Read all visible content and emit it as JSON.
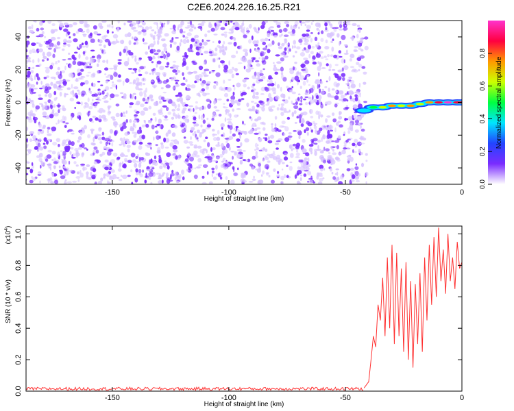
{
  "title": "C2E6.2024.226.16.25.R21",
  "colorbar": {
    "label": "Normalized spectral amplitude",
    "ticks": [
      "0.0",
      "0.2",
      "0.4",
      "0.6",
      "0.8"
    ],
    "tick_values": [
      0.0,
      0.2,
      0.4,
      0.6,
      0.8
    ],
    "range": [
      0,
      1
    ],
    "colors": [
      "#ffffff",
      "#7a2cff",
      "#2244ff",
      "#00e5ff",
      "#00ff40",
      "#ccff00",
      "#ff9900",
      "#ff0040",
      "#ff33cc"
    ]
  },
  "chart_data": [
    {
      "type": "heatmap",
      "xlabel": "Height of straight line (km)",
      "ylabel": "Frequency (Hz)",
      "xlim": [
        -187,
        0
      ],
      "ylim": [
        -50,
        50
      ],
      "x_ticks": [
        -150,
        -100,
        -50,
        0
      ],
      "y_ticks": [
        -40,
        -20,
        0,
        20,
        40
      ],
      "noise_region_x": [
        -187,
        -42
      ],
      "signal_track": {
        "x": [
          -42,
          -38,
          -34,
          -30,
          -26,
          -22,
          -18,
          -14,
          -10,
          -6,
          -2,
          0
        ],
        "y": [
          -5,
          -3,
          -3,
          -2,
          -2,
          -2,
          -1,
          0,
          0,
          0,
          0,
          0
        ],
        "amplitude": [
          0.4,
          0.5,
          0.6,
          0.7,
          0.6,
          0.7,
          0.6,
          0.8,
          0.9,
          0.95,
          0.9,
          0.85
        ]
      },
      "colors": {
        "noise": "#7a2cff",
        "noise_light": "#d8c4ff"
      }
    },
    {
      "type": "line",
      "xlabel": "Height of straight line (km)",
      "ylabel": "SNR (10 * v/v)",
      "y_multiplier": "(x10",
      "y_multiplier_exp": "4",
      "y_multiplier_close": ")",
      "xlim": [
        -187,
        0
      ],
      "ylim": [
        0,
        1.05
      ],
      "x_ticks": [
        -150,
        -100,
        -50,
        0
      ],
      "y_ticks": [
        0.0,
        0.2,
        0.4,
        0.6,
        0.8,
        1.0
      ],
      "y_tick_labels": [
        "0.0",
        "0.2",
        "0.4",
        "0.6",
        "0.8",
        "1.0"
      ],
      "series": [
        {
          "color": "#ff3030",
          "x": [
            -187,
            -150,
            -100,
            -50,
            -42,
            -40,
            -39,
            -38,
            -37,
            -36,
            -35,
            -34,
            -33,
            -32,
            -31,
            -30,
            -29,
            -28,
            -27,
            -26,
            -25,
            -24,
            -23,
            -22,
            -21,
            -20,
            -19,
            -18,
            -17,
            -16,
            -15,
            -14,
            -13,
            -12,
            -11,
            -10,
            -9,
            -8,
            -7,
            -6,
            -5,
            -4,
            -3,
            -2,
            -1,
            0
          ],
          "y": [
            0.01,
            0.012,
            0.01,
            0.012,
            0.02,
            0.06,
            0.2,
            0.35,
            0.28,
            0.55,
            0.45,
            0.72,
            0.35,
            0.85,
            0.4,
            0.93,
            0.3,
            0.88,
            0.35,
            0.78,
            0.25,
            0.82,
            0.2,
            0.7,
            0.15,
            0.68,
            0.3,
            0.75,
            0.25,
            0.85,
            0.45,
            0.93,
            0.55,
            0.98,
            0.6,
            1.04,
            0.7,
            0.9,
            0.62,
            1.0,
            0.7,
            0.85,
            0.65,
            0.95,
            0.78,
            0.82
          ]
        }
      ]
    }
  ]
}
